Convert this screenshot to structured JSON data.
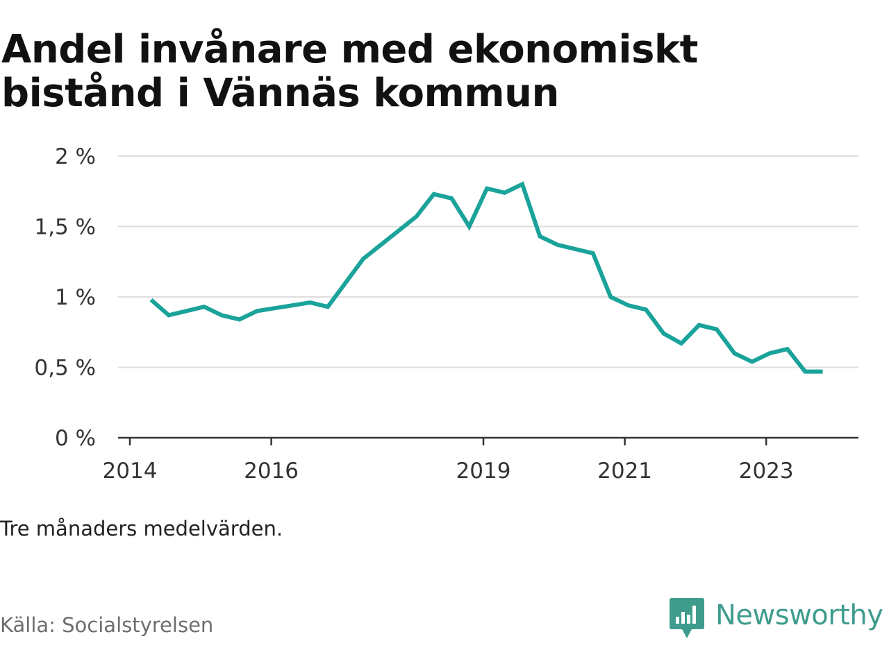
{
  "title": "Andel invånare med ekonomiskt bistånd i Vännäs kommun",
  "note": "Tre månaders medelvärden.",
  "source": "Källa: Socialstyrelsen",
  "brand": {
    "name": "Newsworthy",
    "color": "#3f9c8d"
  },
  "colors": {
    "line": "#1aa39a",
    "grid": "#dddddd",
    "axis": "#333333"
  },
  "chart_data": {
    "type": "line",
    "title": "Andel invånare med ekonomiskt bistånd i Vännäs kommun",
    "xlabel": "",
    "ylabel": "",
    "ylim": [
      0,
      2
    ],
    "xlim": [
      2014,
      2024.4
    ],
    "grid": true,
    "y_ticks": [
      0,
      0.5,
      1,
      1.5,
      2
    ],
    "y_tick_labels": [
      "0 %",
      "0,5 %",
      "1 %",
      "1,5 %",
      "2 %"
    ],
    "x_ticks": [
      2014,
      2016,
      2019,
      2021,
      2023
    ],
    "x_tick_labels": [
      "2014",
      "2016",
      "2019",
      "2021",
      "2023"
    ],
    "series": [
      {
        "x": [
          2014.3,
          2014.55,
          2014.8,
          2015.05,
          2015.3,
          2015.55,
          2015.8,
          2016.05,
          2016.3,
          2016.55,
          2016.8,
          2017.05,
          2017.3,
          2017.55,
          2017.8,
          2018.05,
          2018.3,
          2018.55,
          2018.8,
          2019.05,
          2019.3,
          2019.55,
          2019.8,
          2020.05,
          2020.3,
          2020.55,
          2020.8,
          2021.05,
          2021.3,
          2021.55,
          2021.8,
          2022.05,
          2022.3,
          2022.55,
          2022.8,
          2023.05,
          2023.3,
          2023.55,
          2023.8
        ],
        "y": [
          0.98,
          0.87,
          0.9,
          0.93,
          0.87,
          0.84,
          0.9,
          0.92,
          0.94,
          0.96,
          0.93,
          1.1,
          1.27,
          1.37,
          1.47,
          1.57,
          1.73,
          1.7,
          1.5,
          1.77,
          1.74,
          1.8,
          1.43,
          1.37,
          1.34,
          1.31,
          1.0,
          0.94,
          0.91,
          0.74,
          0.67,
          0.8,
          0.77,
          0.6,
          0.54,
          0.6,
          0.63,
          0.47,
          0.47
        ]
      }
    ]
  }
}
